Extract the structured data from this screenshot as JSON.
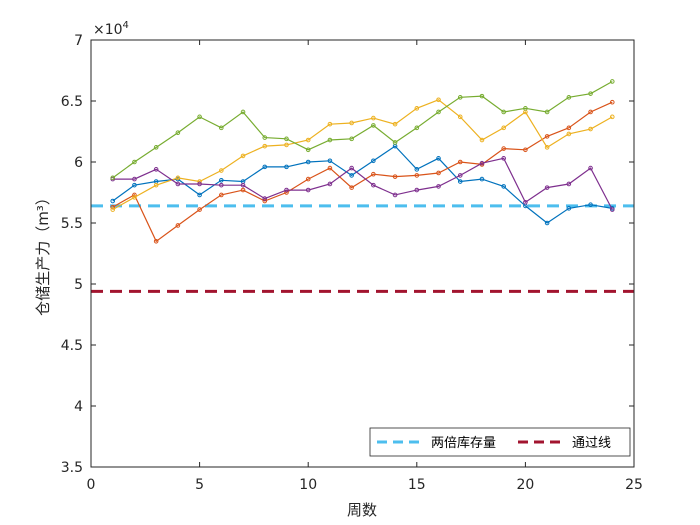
{
  "chart_data": {
    "type": "line",
    "xlabel": "周数",
    "ylabel": "仓储生产力（m³）",
    "exponent_label": "×10",
    "exponent_power": "4",
    "xlim": [
      0,
      25
    ],
    "ylim": [
      3.5,
      7
    ],
    "y_scale_factor": 10000,
    "xticks": [
      0,
      5,
      10,
      15,
      20,
      25
    ],
    "yticks": [
      3.5,
      4,
      4.5,
      5,
      5.5,
      6,
      6.5,
      7
    ],
    "ytick_labels": [
      "3.5",
      "4",
      "4.5",
      "5",
      "5.5",
      "6",
      "6.5",
      "7"
    ],
    "grid": false,
    "legend_position": "bottom-right",
    "series": [
      {
        "color": "#0072BD",
        "x": [
          1,
          2,
          3,
          4,
          5,
          6,
          7,
          8,
          9,
          10,
          11,
          12,
          13,
          14,
          15,
          16,
          17,
          18,
          19,
          20,
          21,
          22,
          23,
          24
        ],
        "values": [
          5.68,
          5.81,
          5.84,
          5.86,
          5.73,
          5.85,
          5.84,
          5.96,
          5.96,
          6.0,
          6.01,
          5.89,
          6.01,
          6.13,
          5.94,
          6.03,
          5.84,
          5.86,
          5.8,
          5.64,
          5.5,
          5.62,
          5.65,
          5.62
        ]
      },
      {
        "color": "#D95319",
        "x": [
          1,
          2,
          3,
          4,
          5,
          6,
          7,
          8,
          9,
          10,
          11,
          12,
          13,
          14,
          15,
          16,
          17,
          18,
          19,
          20,
          21,
          22,
          23,
          24
        ],
        "values": [
          5.63,
          5.73,
          5.35,
          5.48,
          5.61,
          5.73,
          5.77,
          5.68,
          5.75,
          5.86,
          5.95,
          5.79,
          5.9,
          5.88,
          5.89,
          5.91,
          6.0,
          5.98,
          6.11,
          6.1,
          6.21,
          6.28,
          6.41,
          6.49
        ]
      },
      {
        "color": "#EDB120",
        "x": [
          1,
          2,
          3,
          4,
          5,
          6,
          7,
          8,
          9,
          10,
          11,
          12,
          13,
          14,
          15,
          16,
          17,
          18,
          19,
          20,
          21,
          22,
          23,
          24
        ],
        "values": [
          5.61,
          5.71,
          5.81,
          5.87,
          5.84,
          5.93,
          6.05,
          6.13,
          6.14,
          6.18,
          6.31,
          6.32,
          6.36,
          6.31,
          6.44,
          6.51,
          6.37,
          6.18,
          6.28,
          6.41,
          6.12,
          6.23,
          6.27,
          6.37
        ]
      },
      {
        "color": "#7E2F8E",
        "x": [
          1,
          2,
          3,
          4,
          5,
          6,
          7,
          8,
          9,
          10,
          11,
          12,
          13,
          14,
          15,
          16,
          17,
          18,
          19,
          20,
          21,
          22,
          23,
          24
        ],
        "values": [
          5.86,
          5.86,
          5.94,
          5.82,
          5.82,
          5.81,
          5.81,
          5.7,
          5.77,
          5.77,
          5.82,
          5.95,
          5.81,
          5.73,
          5.77,
          5.8,
          5.89,
          5.99,
          6.03,
          5.67,
          5.79,
          5.82,
          5.95,
          5.61
        ]
      },
      {
        "color": "#77AC30",
        "x": [
          1,
          2,
          3,
          4,
          5,
          6,
          7,
          8,
          9,
          10,
          11,
          12,
          13,
          14,
          15,
          16,
          17,
          18,
          19,
          20,
          21,
          22,
          23,
          24
        ],
        "values": [
          5.87,
          6.0,
          6.12,
          6.24,
          6.37,
          6.28,
          6.41,
          6.2,
          6.19,
          6.1,
          6.18,
          6.19,
          6.3,
          6.16,
          6.28,
          6.41,
          6.53,
          6.54,
          6.41,
          6.44,
          6.41,
          6.53,
          6.56,
          6.66
        ]
      }
    ],
    "reference_lines": [
      {
        "name": "两倍库存量",
        "value": 5.64,
        "color": "#4DBEEE"
      },
      {
        "name": "通过线",
        "value": 4.94,
        "color": "#A2142F"
      }
    ]
  }
}
